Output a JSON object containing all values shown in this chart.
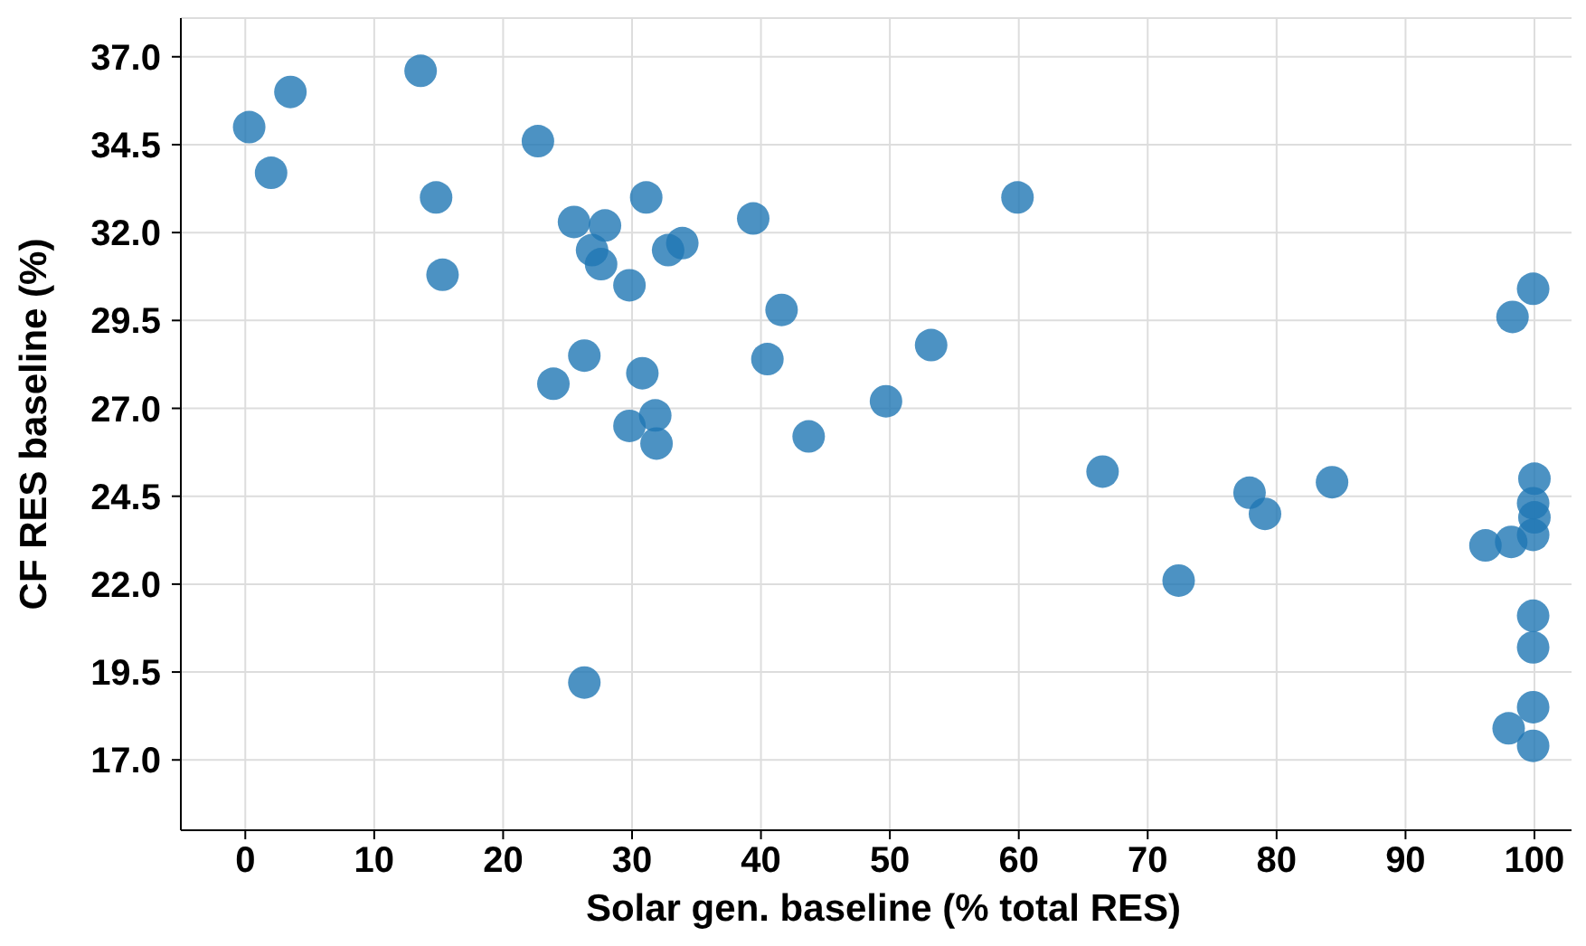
{
  "chart_data": {
    "type": "scatter",
    "xlabel": "Solar gen. baseline (% total RES)",
    "ylabel": "CF RES baseline (%)",
    "x": [
      0.3,
      3.5,
      2.0,
      13.6,
      14.8,
      15.3,
      22.7,
      25.5,
      27.9,
      26.9,
      27.6,
      31.1,
      29.8,
      32.8,
      33.9,
      39.4,
      41.6,
      40.5,
      26.3,
      23.9,
      30.8,
      31.8,
      29.8,
      31.9,
      43.7,
      49.7,
      53.2,
      59.9,
      26.3,
      66.5,
      77.9,
      79.1,
      84.3,
      72.4,
      99.9,
      98.3,
      100,
      99.9,
      100,
      99.9,
      96.2,
      98.2,
      99.9,
      99.9,
      99.9,
      98.0,
      99.9
    ],
    "series": [
      {
        "color": "#1f77b4",
        "values": [
          35.0,
          36.0,
          33.7,
          36.6,
          33.0,
          30.8,
          34.6,
          32.3,
          32.2,
          31.5,
          31.1,
          33.0,
          30.5,
          31.5,
          31.7,
          32.4,
          29.8,
          28.4,
          28.5,
          27.7,
          28.0,
          26.8,
          26.5,
          26.0,
          26.2,
          27.2,
          28.8,
          33.0,
          19.2,
          25.2,
          24.6,
          24.0,
          24.9,
          22.1,
          30.4,
          29.6,
          25.0,
          24.3,
          23.9,
          23.4,
          23.1,
          23.2,
          21.1,
          20.2,
          18.5,
          17.9,
          17.4
        ]
      }
    ],
    "xlim": [
      -5,
      104
    ],
    "xticks": [
      0,
      10,
      20,
      30,
      40,
      50,
      60,
      70,
      80,
      90,
      100
    ],
    "ylim": [
      15.0,
      38.1
    ],
    "yticks": [
      {
        "value": 37,
        "label": "37.0"
      },
      {
        "value": 34.5,
        "label": "34.5"
      },
      {
        "value": 32,
        "label": "32.0"
      },
      {
        "value": 29.5,
        "label": "29.5"
      },
      {
        "value": 27,
        "label": "27.0"
      },
      {
        "value": 24.5,
        "label": "24.5"
      },
      {
        "value": 22,
        "label": "22.0"
      },
      {
        "value": 19.5,
        "label": "19.5"
      },
      {
        "value": 17,
        "label": "17.0"
      }
    ],
    "grid": true,
    "marker": "circle"
  }
}
